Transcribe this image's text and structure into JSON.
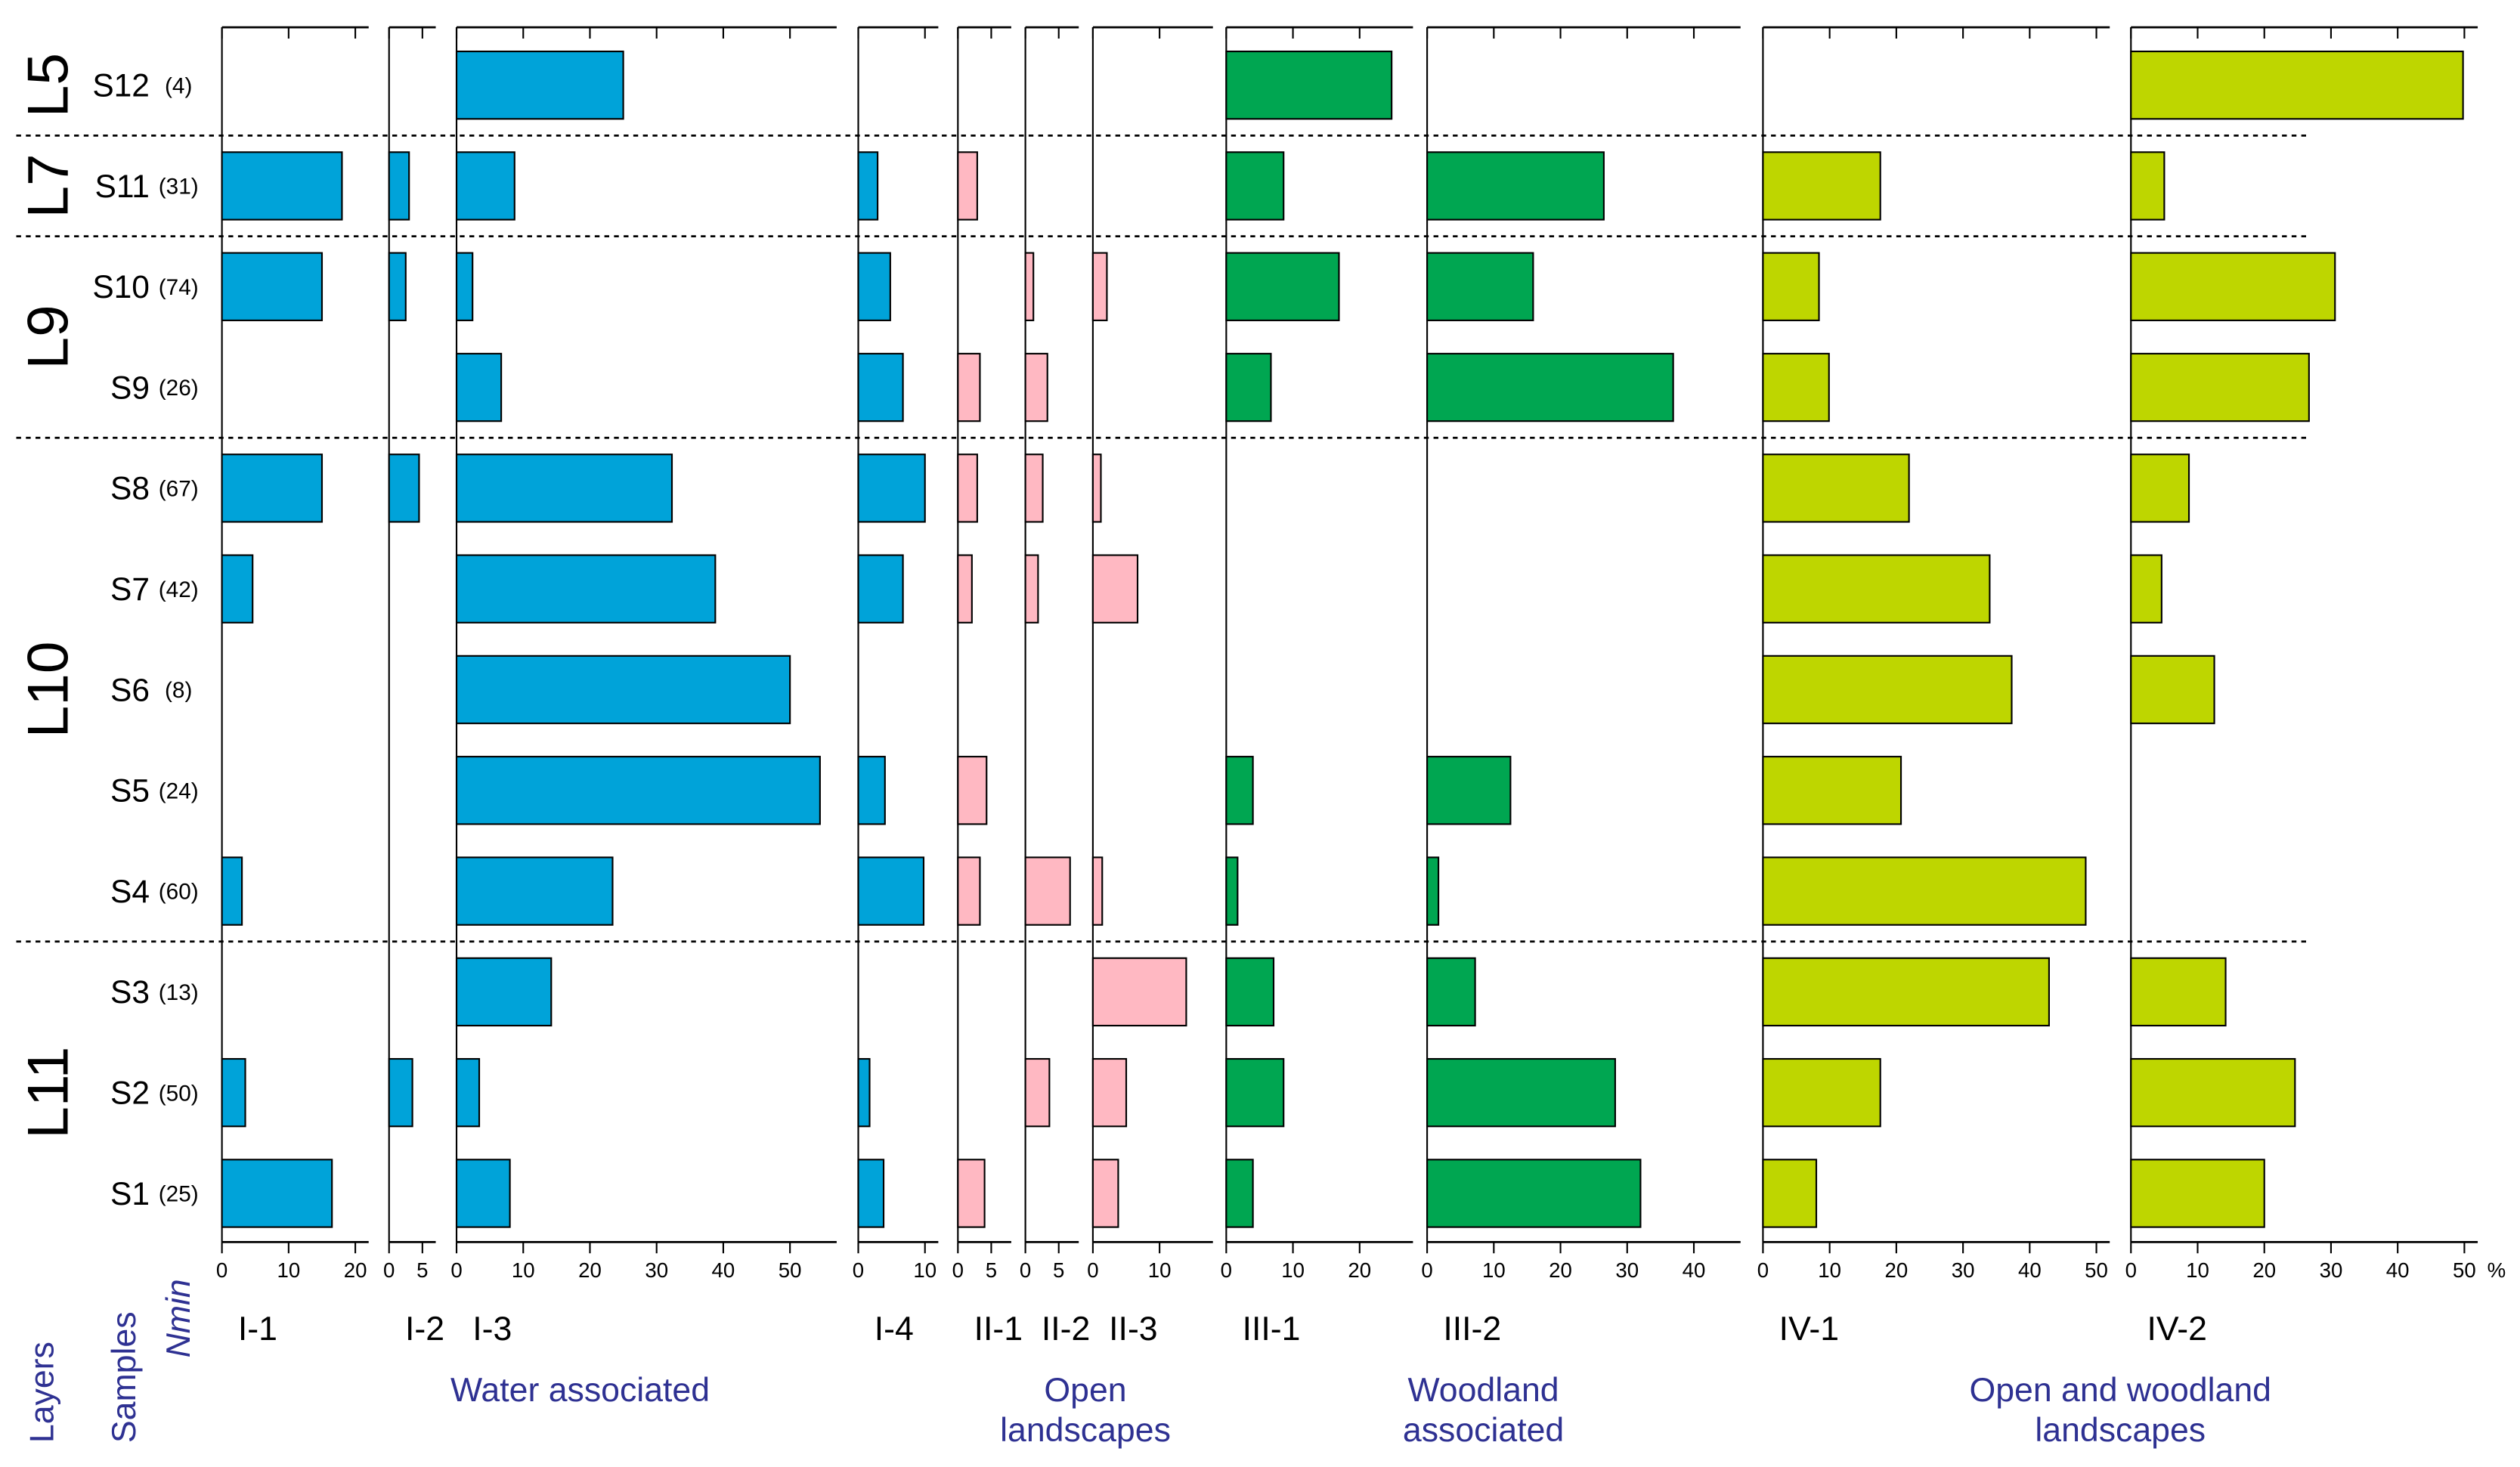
{
  "chart_data": {
    "type": "bar",
    "orientation": "horizontal",
    "categories": [
      "S12",
      "S11",
      "S10",
      "S9",
      "S8",
      "S7",
      "S6",
      "S5",
      "S4",
      "S3",
      "S2",
      "S1"
    ],
    "nmin": [
      "(4)",
      "(31)",
      "(74)",
      "(26)",
      "(67)",
      "(42)",
      "(8)",
      "(24)",
      "(60)",
      "(13)",
      "(50)",
      "(25)"
    ],
    "layers": [
      "L5",
      "L7",
      "L9",
      "L9",
      "L10",
      "L10",
      "L10",
      "L10",
      "L10",
      "L11",
      "L11",
      "L11"
    ],
    "axis_labels": {
      "layers": "Layers",
      "samples": "Samples",
      "nmin": "Nmin"
    },
    "unit": "%",
    "groups": [
      {
        "label": [
          "Water associated"
        ],
        "panels": [
          {
            "title": "I-1",
            "color": "#00a3d9",
            "xlim": [
              0,
              22
            ],
            "xticks": [
              0,
              10,
              20
            ],
            "values": [
              null,
              18,
              15,
              null,
              15,
              4.6,
              null,
              null,
              3,
              null,
              3.5,
              16.5
            ]
          },
          {
            "title": "I-2",
            "color": "#00a3d9",
            "xlim": [
              0,
              7
            ],
            "xticks": [
              0,
              5
            ],
            "values": [
              null,
              3,
              2.5,
              null,
              4.5,
              null,
              null,
              null,
              null,
              null,
              3.5,
              null
            ]
          },
          {
            "title": "I-3",
            "color": "#00a3d9",
            "xlim": [
              0,
              57
            ],
            "xticks": [
              0,
              10,
              20,
              30,
              40,
              50
            ],
            "values": [
              25,
              8.7,
              2.4,
              6.7,
              32.3,
              38.8,
              50,
              54.5,
              23.4,
              14.2,
              3.4,
              8
            ]
          },
          {
            "title": "I-4",
            "color": "#00a3d9",
            "xlim": [
              0,
              12
            ],
            "xticks": [
              0,
              10
            ],
            "values": [
              null,
              2.9,
              4.8,
              6.7,
              10,
              6.7,
              null,
              4,
              9.8,
              null,
              1.7,
              3.8
            ]
          }
        ]
      },
      {
        "label": [
          "Open",
          "landscapes"
        ],
        "panels": [
          {
            "title": "II-1",
            "color": "#ffb8c2",
            "xlim": [
              0,
              8
            ],
            "xticks": [
              0,
              5
            ],
            "values": [
              null,
              2.9,
              null,
              3.3,
              2.9,
              2.1,
              null,
              4.3,
              3.3,
              null,
              null,
              4
            ]
          },
          {
            "title": "II-2",
            "color": "#ffb8c2",
            "xlim": [
              0,
              8
            ],
            "xticks": [
              0,
              5
            ],
            "values": [
              null,
              null,
              1.2,
              3.3,
              2.6,
              1.9,
              null,
              null,
              6.7,
              null,
              3.6,
              null
            ]
          },
          {
            "title": "II-3",
            "color": "#ffb8c2",
            "xlim": [
              0,
              18
            ],
            "xticks": [
              0,
              10
            ],
            "values": [
              null,
              null,
              2.1,
              null,
              1.2,
              6.7,
              null,
              null,
              1.4,
              14,
              5,
              3.8
            ]
          }
        ]
      },
      {
        "label": [
          "Woodland",
          "associated"
        ],
        "panels": [
          {
            "title": "III-1",
            "color": "#00a651",
            "xlim": [
              0,
              28
            ],
            "xticks": [
              0,
              10,
              20
            ],
            "values": [
              24.8,
              8.6,
              16.9,
              6.7,
              null,
              null,
              null,
              4,
              1.7,
              7.1,
              8.6,
              4
            ]
          },
          {
            "title": "III-2",
            "color": "#00a651",
            "xlim": [
              0,
              47
            ],
            "xticks": [
              0,
              10,
              20,
              30,
              40
            ],
            "values": [
              null,
              26.5,
              15.9,
              36.9,
              null,
              null,
              null,
              12.5,
              1.7,
              7.2,
              28.2,
              32
            ]
          }
        ]
      },
      {
        "label": [
          "Open and woodland",
          "landscapes"
        ],
        "panels": [
          {
            "title": "IV-1",
            "color": "#bed600",
            "xlim": [
              0,
              52
            ],
            "xticks": [
              0,
              10,
              20,
              30,
              40,
              50
            ],
            "values": [
              null,
              17.6,
              8.4,
              9.9,
              21.9,
              34,
              37.3,
              20.7,
              48.4,
              42.9,
              17.6,
              8
            ]
          },
          {
            "title": "IV-2",
            "color": "#bed600",
            "xlim": [
              0,
              52
            ],
            "xticks": [
              0,
              10,
              20,
              30,
              40,
              50
            ],
            "values": [
              49.8,
              5,
              30.6,
              26.7,
              8.7,
              4.6,
              12.5,
              null,
              null,
              14.2,
              24.6,
              20
            ]
          }
        ]
      }
    ]
  }
}
